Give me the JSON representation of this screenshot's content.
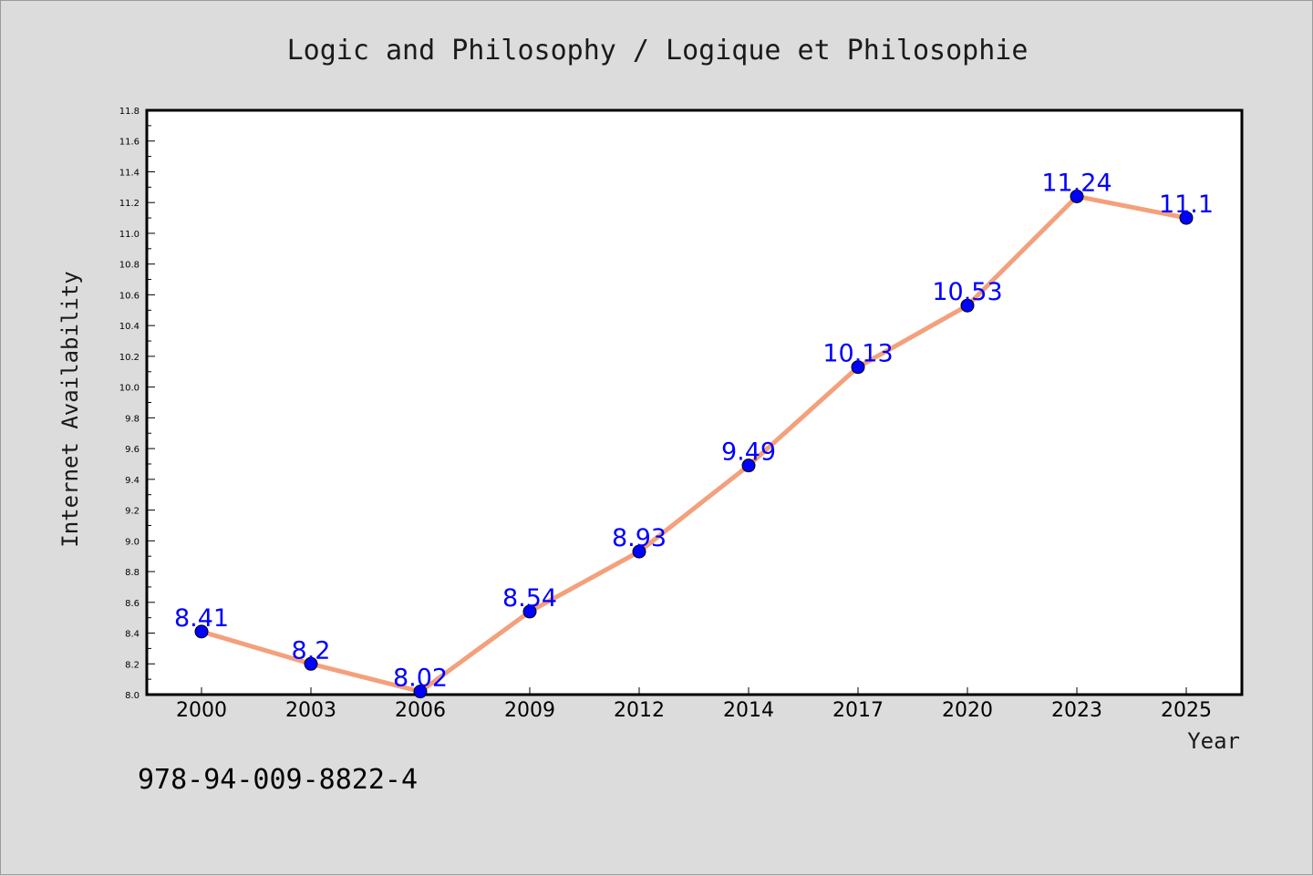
{
  "chart_data": {
    "type": "line",
    "title": "Logic and Philosophy / Logique et Philosophie",
    "xlabel": "Year",
    "ylabel": "Internet Availability",
    "categories": [
      "2000",
      "2003",
      "2006",
      "2009",
      "2012",
      "2014",
      "2017",
      "2020",
      "2023",
      "2025"
    ],
    "series": [
      {
        "values": [
          8.41,
          8.2,
          8.02,
          8.54,
          8.93,
          9.49,
          10.13,
          10.53,
          11.24,
          11.1
        ],
        "labels": [
          "8.41",
          "8.2",
          "8.02",
          "8.54",
          "8.93",
          "9.49",
          "10.13",
          "10.53",
          "11.24",
          "11.1"
        ],
        "line_color": "#f4a07c",
        "marker_color": "#0000ff"
      }
    ],
    "ylim": [
      8.0,
      11.8
    ],
    "yticks": [
      "8.0",
      "8.2",
      "8.4",
      "8.6",
      "8.8",
      "9.0",
      "9.2",
      "9.4",
      "9.6",
      "9.8",
      "10.0",
      "10.2",
      "10.4",
      "10.6",
      "10.8",
      "11.0",
      "11.2",
      "11.4",
      "11.6",
      "11.8"
    ],
    "grid": false,
    "legend": "none"
  },
  "footer": {
    "isbn": "978-94-009-8822-4"
  },
  "colors": {
    "background": "#dcdcdc",
    "plot_background": "#ffffff",
    "line": "#f4a07c",
    "marker": "#0000ff",
    "label": "#0000ff"
  }
}
